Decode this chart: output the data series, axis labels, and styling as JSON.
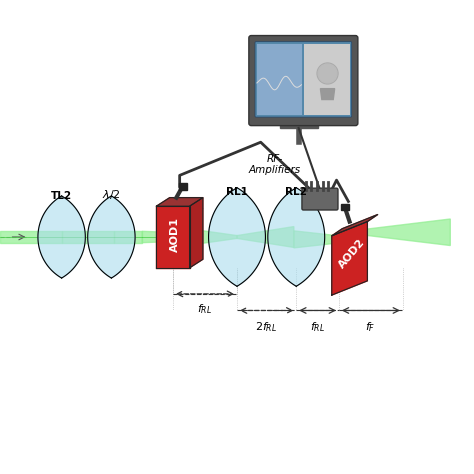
{
  "bg_color": "#ffffff",
  "beam_color": "#90ee90",
  "beam_core_color": "#00cc00",
  "aod_red": "#cc2222",
  "aod_dark": "#444444",
  "lens_color": "#aaddee",
  "arrow_color": "#333333",
  "monitor_frame": "#555555",
  "monitor_screen": "#6699bb",
  "title": "",
  "labels": {
    "TL2": "TL2",
    "lambda_half": "λ/2",
    "AOD1": "AOD1",
    "RL1": "RL1",
    "RL2": "RL2",
    "AOD2": "AOD2",
    "RF_Amplifiers": "RF-\nAmplifiers",
    "f_RL": "fₛL",
    "two_f_RL": "2fₛL",
    "f_RL2": "fₛL",
    "f_F": "fₙ"
  }
}
